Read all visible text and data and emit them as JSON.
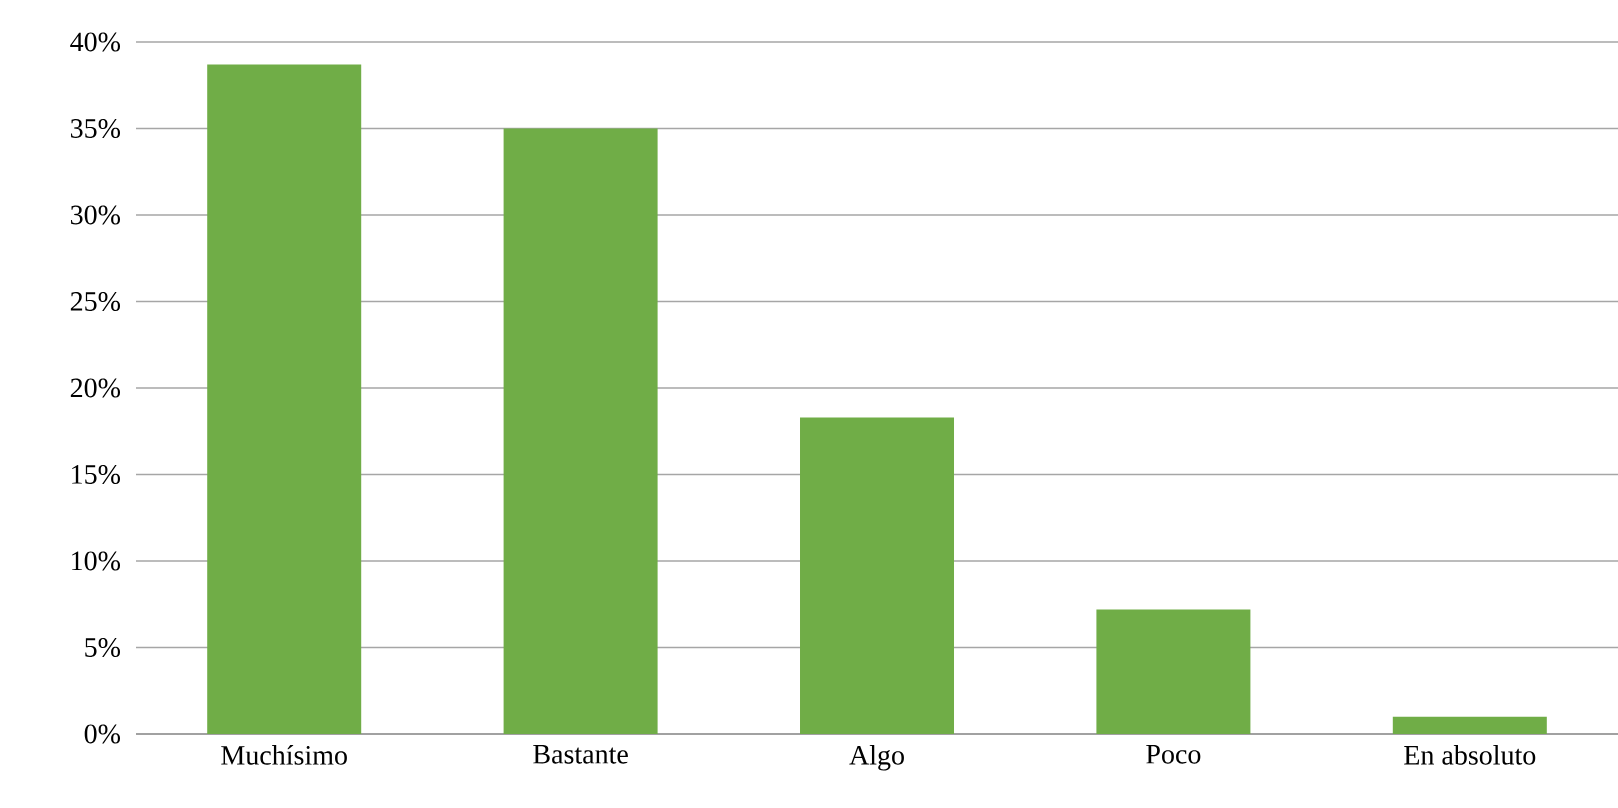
{
  "chart_data": {
    "type": "bar",
    "categories": [
      "Muchísimo",
      "Bastante",
      "Algo",
      "Poco",
      "En absoluto"
    ],
    "values": [
      38.7,
      35.0,
      18.3,
      7.2,
      1.0
    ],
    "color": "#70ad47",
    "ylim": [
      0,
      40
    ],
    "yticks": [
      {
        "value": 0,
        "label": "0%"
      },
      {
        "value": 5,
        "label": "5%"
      },
      {
        "value": 10,
        "label": "10%"
      },
      {
        "value": 15,
        "label": "15%"
      },
      {
        "value": 20,
        "label": "20%"
      },
      {
        "value": 25,
        "label": "25%"
      },
      {
        "value": 30,
        "label": "30%"
      },
      {
        "value": 35,
        "label": "35%"
      },
      {
        "value": 40,
        "label": "40%"
      }
    ],
    "grid": "y"
  }
}
